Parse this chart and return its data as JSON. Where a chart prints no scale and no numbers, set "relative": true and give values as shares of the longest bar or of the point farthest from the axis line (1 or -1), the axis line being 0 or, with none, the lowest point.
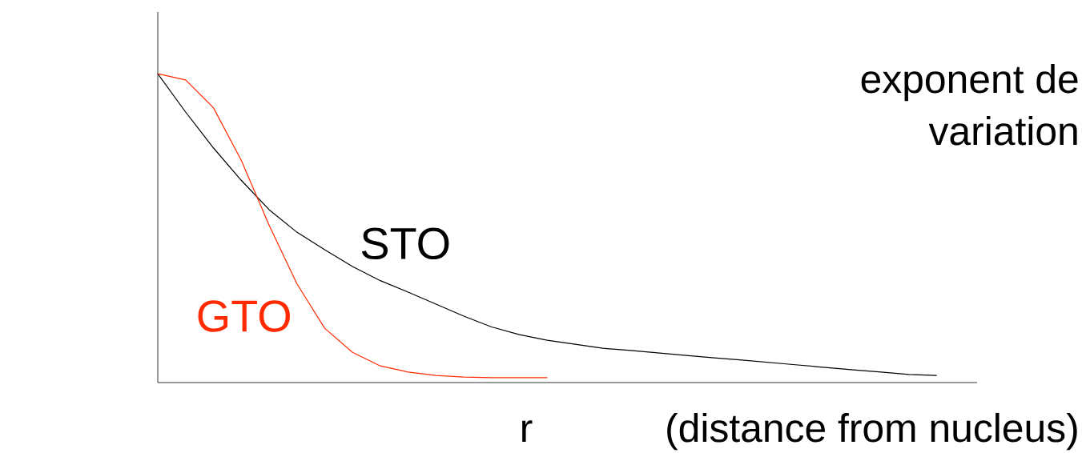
{
  "chart_data": {
    "type": "line",
    "relative": true,
    "annotations": [
      "r",
      "(distance from nucleus)",
      "exponent de",
      "variation"
    ],
    "categories": [
      null,
      null,
      null,
      null,
      null,
      null,
      null,
      null,
      null,
      null,
      null,
      null,
      null,
      null,
      null,
      null,
      null,
      null,
      null,
      null,
      null,
      null,
      null,
      null,
      null,
      null,
      null,
      null,
      null
    ],
    "series": [
      {
        "name": "STO",
        "color": "#000000",
        "values": [
          1.0,
          0.876,
          0.76,
          0.655,
          0.56,
          0.487,
          0.43,
          0.376,
          0.33,
          0.293,
          0.254,
          0.215,
          0.18,
          0.155,
          0.137,
          0.124,
          0.111,
          0.104,
          0.096,
          0.088,
          0.08,
          0.073,
          0.065,
          0.057,
          0.049,
          0.041,
          0.034,
          0.026,
          0.023
        ]
      },
      {
        "name": "GTO",
        "color": "#ff2a00",
        "values": [
          1.0,
          0.98,
          0.89,
          0.72,
          0.51,
          0.32,
          0.176,
          0.098,
          0.054,
          0.034,
          0.023,
          0.018,
          0.016,
          0.016,
          0.016,
          null,
          null,
          null,
          null,
          null,
          null,
          null,
          null,
          null,
          null,
          null,
          null,
          null,
          null
        ]
      }
    ],
    "marker": "none",
    "line_style": "solid"
  }
}
